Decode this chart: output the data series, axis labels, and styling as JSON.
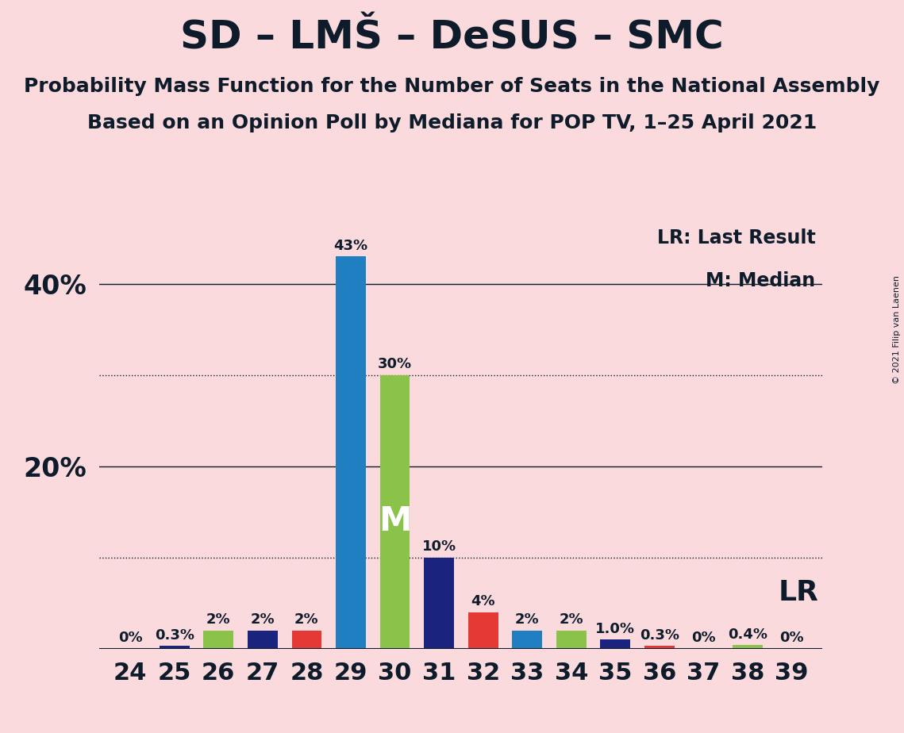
{
  "title": "SD – LMŠ – DeSUS – SMC",
  "subtitle1": "Probability Mass Function for the Number of Seats in the National Assembly",
  "subtitle2": "Based on an Opinion Poll by Mediana for POP TV, 1–25 April 2021",
  "copyright": "© 2021 Filip van Laenen",
  "seats": [
    24,
    25,
    26,
    27,
    28,
    29,
    30,
    31,
    32,
    33,
    34,
    35,
    36,
    37,
    38,
    39
  ],
  "values": [
    0.0,
    0.3,
    2.0,
    2.0,
    2.0,
    43.0,
    30.0,
    10.0,
    4.0,
    2.0,
    2.0,
    1.0,
    0.3,
    0.0,
    0.4,
    0.0
  ],
  "labels": [
    "0%",
    "0.3%",
    "2%",
    "2%",
    "2%",
    "43%",
    "30%",
    "10%",
    "4%",
    "2%",
    "2%",
    "1.0%",
    "0.3%",
    "0%",
    "0.4%",
    "0%"
  ],
  "colors": [
    "#1F7FC0",
    "#1A237E",
    "#8BC34A",
    "#1A237E",
    "#E53935",
    "#1F7FC0",
    "#8BC34A",
    "#1A237E",
    "#E53935",
    "#1F7FC0",
    "#8BC34A",
    "#1A237E",
    "#E53935",
    "#1A237E",
    "#8BC34A",
    "#1A237E"
  ],
  "median_seat": 30,
  "background_color": "#FADADD",
  "title_color": "#0D1B2A",
  "axis_color": "#0D1B2A",
  "ylim": [
    0,
    47
  ],
  "solid_lines": [
    20,
    40
  ],
  "dotted_lines": [
    10,
    30
  ],
  "annotation_color": "#0D1B2A",
  "legend_text1": "LR: Last Result",
  "legend_text2": "M: Median",
  "lr_label": "LR",
  "median_label": "M",
  "label_fontsize": 13,
  "title_fontsize": 36,
  "subtitle_fontsize": 18,
  "ytick_fontsize": 24,
  "xtick_fontsize": 22
}
